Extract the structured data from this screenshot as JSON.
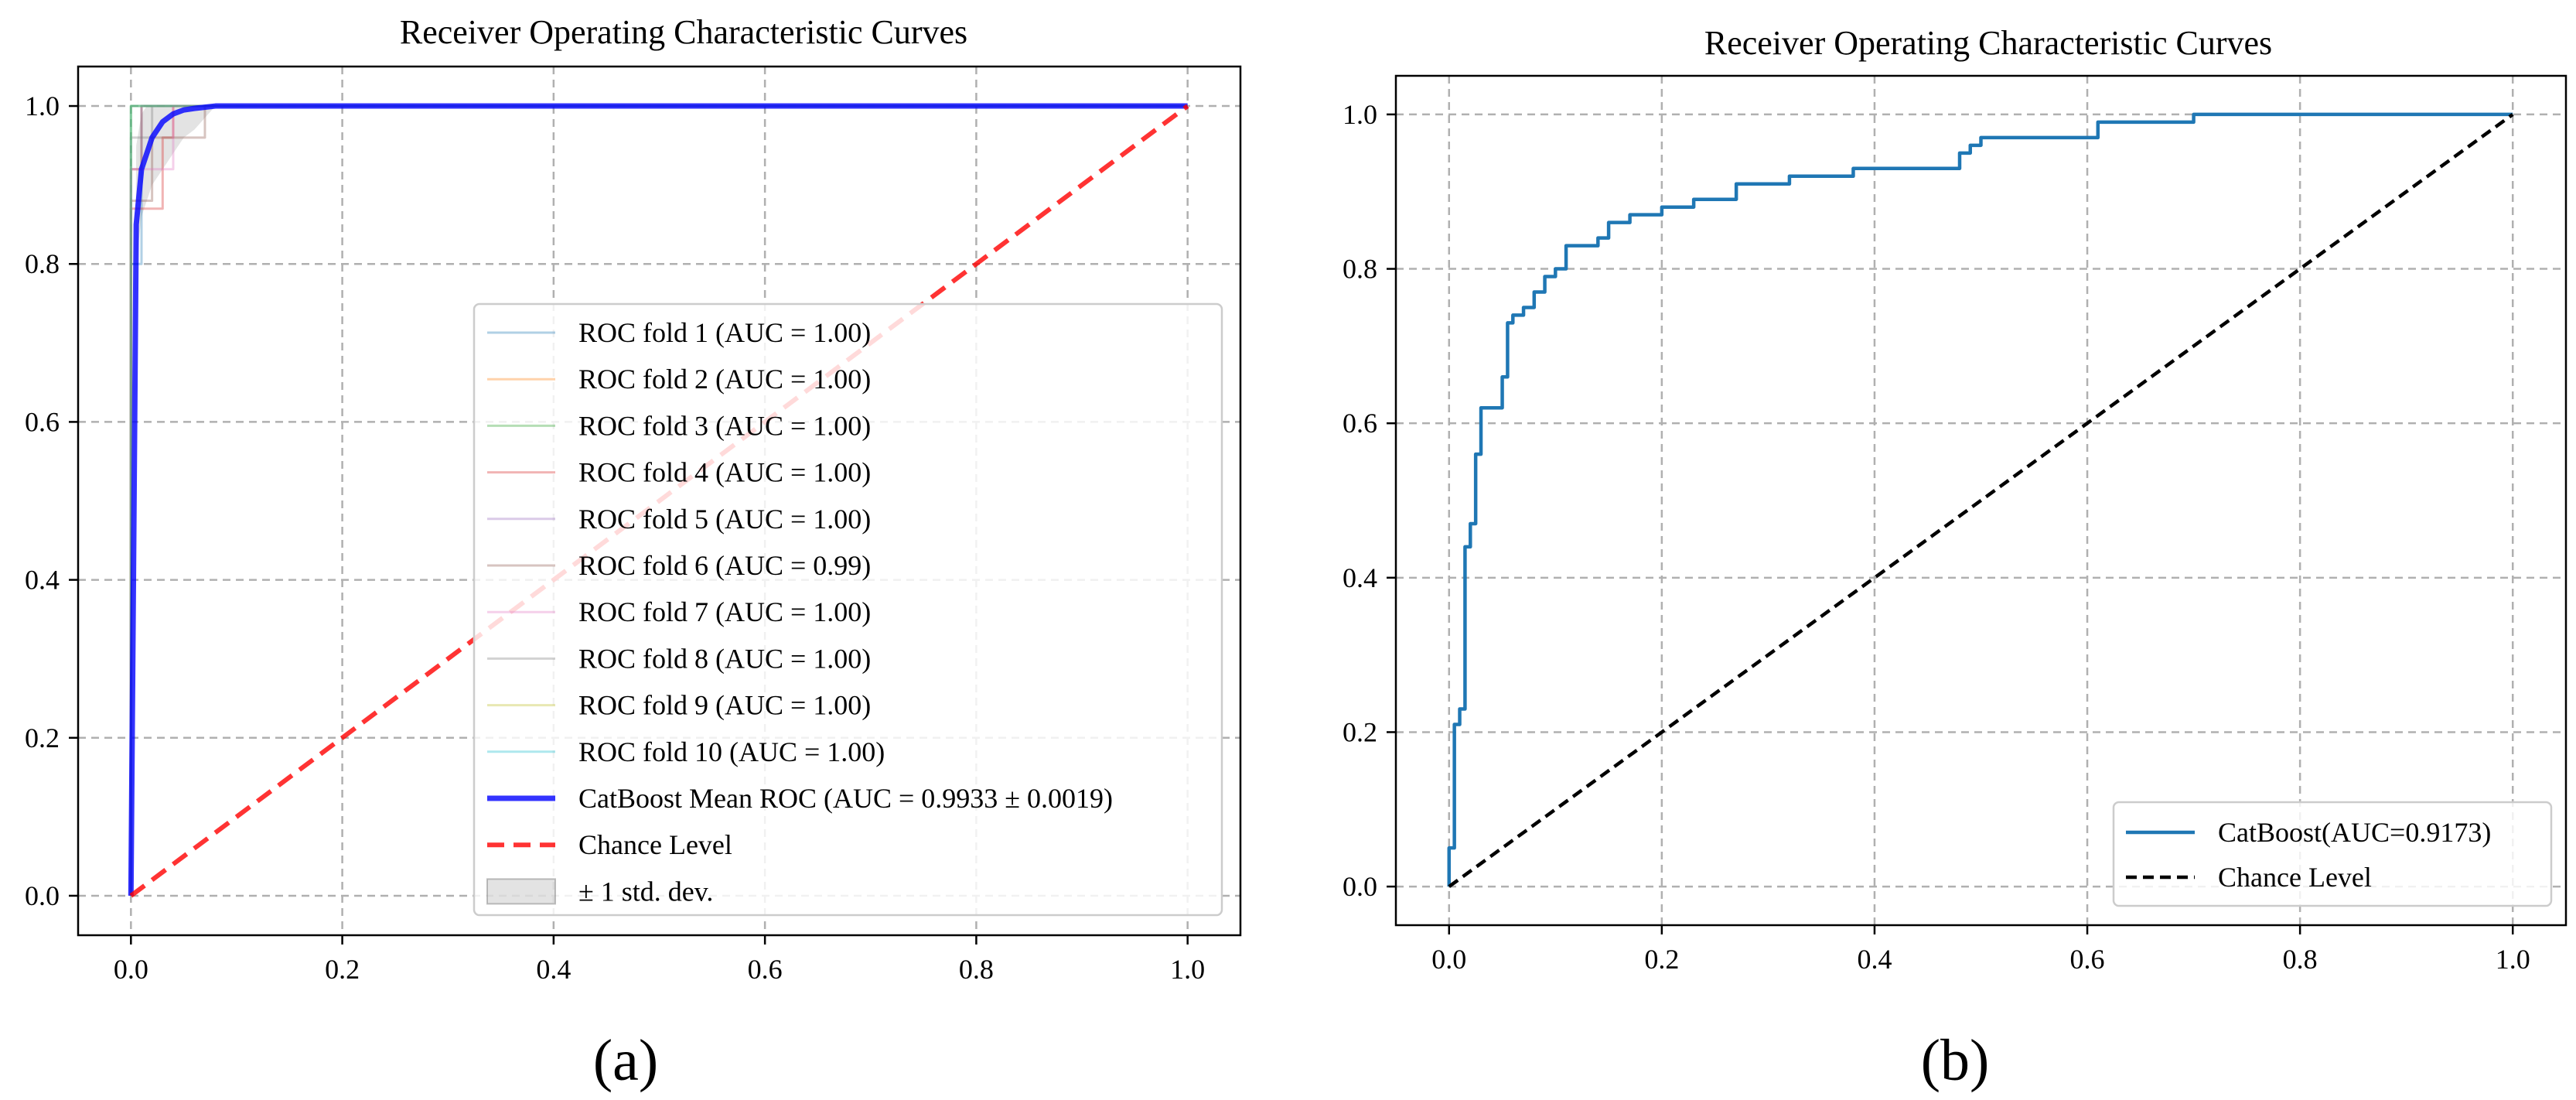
{
  "chart_data": [
    {
      "panel": "(a)",
      "type": "line",
      "title": "Receiver Operating Characteristic Curves",
      "xlabel": "",
      "ylabel": "",
      "xlim": [
        -0.05,
        1.05
      ],
      "ylim": [
        -0.05,
        1.05
      ],
      "xticks": [
        "0.0",
        "0.2",
        "0.4",
        "0.6",
        "0.8",
        "1.0"
      ],
      "yticks": [
        "0.0",
        "0.2",
        "0.4",
        "0.6",
        "0.8",
        "1.0"
      ],
      "grid": true,
      "legend_position": "lower-right",
      "series": [
        {
          "name": "ROC fold 1 (AUC = 1.00)",
          "color": "#1f77b4",
          "x": [
            0,
            0,
            0.01,
            0.01,
            1
          ],
          "y": [
            0,
            0.8,
            0.8,
            1.0,
            1.0
          ]
        },
        {
          "name": "ROC fold 2 (AUC = 1.00)",
          "color": "#ff7f0e",
          "x": [
            0,
            0,
            0.01,
            0.01,
            1
          ],
          "y": [
            0,
            0.92,
            0.92,
            1.0,
            1.0
          ]
        },
        {
          "name": "ROC fold 3 (AUC = 1.00)",
          "color": "#2ca02c",
          "x": [
            0,
            0,
            1
          ],
          "y": [
            0,
            1.0,
            1.0
          ]
        },
        {
          "name": "ROC fold 4 (AUC = 1.00)",
          "color": "#d62728",
          "x": [
            0,
            0,
            0.03,
            0.03,
            0.04,
            0.04,
            1
          ],
          "y": [
            0,
            0.87,
            0.87,
            0.96,
            0.96,
            1.0,
            1.0
          ]
        },
        {
          "name": "ROC fold 5 (AUC = 1.00)",
          "color": "#9467bd",
          "x": [
            0,
            0,
            0.01,
            0.01,
            1
          ],
          "y": [
            0,
            0.92,
            0.92,
            1.0,
            1.0
          ]
        },
        {
          "name": "ROC fold 6 (AUC = 0.99)",
          "color": "#8c564b",
          "x": [
            0,
            0,
            0.02,
            0.02,
            0.07,
            0.07,
            1
          ],
          "y": [
            0,
            0.88,
            0.88,
            0.96,
            0.96,
            1.0,
            1.0
          ]
        },
        {
          "name": "ROC fold 7 (AUC = 1.00)",
          "color": "#e377c2",
          "x": [
            0,
            0,
            0.04,
            0.04,
            1
          ],
          "y": [
            0,
            0.92,
            0.92,
            1.0,
            1.0
          ]
        },
        {
          "name": "ROC fold 8 (AUC = 1.00)",
          "color": "#7f7f7f",
          "x": [
            0,
            0,
            0.02,
            0.02,
            1
          ],
          "y": [
            0,
            0.96,
            0.96,
            1.0,
            1.0
          ]
        },
        {
          "name": "ROC fold 9 (AUC = 1.00)",
          "color": "#bcbd22",
          "x": [
            0,
            0,
            1
          ],
          "y": [
            0,
            1.0,
            1.0
          ]
        },
        {
          "name": "ROC fold 10 (AUC = 1.00)",
          "color": "#17becf",
          "x": [
            0,
            0,
            1
          ],
          "y": [
            0,
            1.0,
            1.0
          ]
        },
        {
          "name": "CatBoost Mean ROC (AUC = 0.9933 ± 0.0019)",
          "color": "#0000ff",
          "x": [
            0,
            0.005,
            0.01,
            0.015,
            0.02,
            0.03,
            0.04,
            0.05,
            0.06,
            0.08,
            0.1,
            1.0
          ],
          "y": [
            0,
            0.85,
            0.92,
            0.94,
            0.96,
            0.98,
            0.99,
            0.995,
            0.997,
            1.0,
            1.0,
            1.0
          ]
        },
        {
          "name": "Chance Level",
          "color": "#ff0000",
          "x": [
            0,
            1
          ],
          "y": [
            0,
            1
          ]
        }
      ],
      "std_band": {
        "name": "± 1 std. dev.",
        "x": [
          0,
          0.005,
          0.01,
          0.015,
          0.02,
          0.03,
          0.04,
          0.05,
          0.06,
          0.08,
          0.1,
          1.0
        ],
        "lower": [
          0,
          0.8,
          0.86,
          0.88,
          0.9,
          0.92,
          0.94,
          0.96,
          0.97,
          1.0,
          1.0,
          1.0
        ],
        "upper": [
          0,
          0.95,
          0.99,
          1.0,
          1.0,
          1.0,
          1.0,
          1.0,
          1.0,
          1.0,
          1.0,
          1.0
        ]
      }
    },
    {
      "panel": "(b)",
      "type": "line",
      "title": "Receiver Operating Characteristic Curves",
      "xlabel": "",
      "ylabel": "",
      "xlim": [
        -0.05,
        1.05
      ],
      "ylim": [
        -0.05,
        1.05
      ],
      "xticks": [
        "0.0",
        "0.2",
        "0.4",
        "0.6",
        "0.8",
        "1.0"
      ],
      "yticks": [
        "0.0",
        "0.2",
        "0.4",
        "0.6",
        "0.8",
        "1.0"
      ],
      "grid": true,
      "legend_position": "lower-right",
      "series": [
        {
          "name": "CatBoost(AUC=0.9173)",
          "color": "#1f77b4",
          "x": [
            0,
            0,
            0.005,
            0.005,
            0.01,
            0.01,
            0.015,
            0.015,
            0.02,
            0.02,
            0.025,
            0.025,
            0.03,
            0.03,
            0.05,
            0.05,
            0.055,
            0.055,
            0.06,
            0.06,
            0.07,
            0.07,
            0.08,
            0.08,
            0.09,
            0.09,
            0.1,
            0.1,
            0.11,
            0.11,
            0.14,
            0.14,
            0.15,
            0.15,
            0.17,
            0.17,
            0.2,
            0.2,
            0.23,
            0.23,
            0.27,
            0.27,
            0.32,
            0.32,
            0.38,
            0.38,
            0.48,
            0.48,
            0.49,
            0.49,
            0.5,
            0.5,
            0.61,
            0.61,
            0.7,
            0.7,
            1.0
          ],
          "y": [
            0,
            0.05,
            0.05,
            0.21,
            0.21,
            0.23,
            0.23,
            0.44,
            0.44,
            0.47,
            0.47,
            0.56,
            0.56,
            0.62,
            0.62,
            0.66,
            0.66,
            0.73,
            0.73,
            0.74,
            0.74,
            0.75,
            0.75,
            0.77,
            0.77,
            0.79,
            0.79,
            0.8,
            0.8,
            0.83,
            0.83,
            0.84,
            0.84,
            0.86,
            0.86,
            0.87,
            0.87,
            0.88,
            0.88,
            0.89,
            0.89,
            0.91,
            0.91,
            0.92,
            0.92,
            0.93,
            0.93,
            0.95,
            0.95,
            0.96,
            0.96,
            0.97,
            0.97,
            0.99,
            0.99,
            1.0,
            1.0
          ]
        },
        {
          "name": "Chance Level",
          "color": "#000000",
          "x": [
            0,
            1
          ],
          "y": [
            0,
            1
          ]
        }
      ]
    }
  ],
  "panel_labels": [
    "(a)",
    "(b)"
  ]
}
